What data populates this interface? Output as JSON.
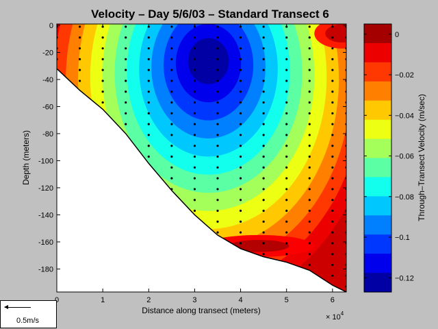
{
  "chart_data": {
    "type": "contour",
    "title": "Velocity – Day 5/6/03 – Standard Transect 6",
    "xlabel": "Distance along transect (meters)",
    "ylabel": "Depth (meters)",
    "x_multiplier": "× 10",
    "x_multiplier_exp": "4",
    "xlim": [
      0,
      63000
    ],
    "ylim": [
      -197,
      1
    ],
    "x_ticks": [
      0,
      10000,
      20000,
      30000,
      40000,
      50000,
      60000
    ],
    "x_tick_labels": [
      "0",
      "1",
      "2",
      "3",
      "4",
      "5",
      "6"
    ],
    "y_ticks": [
      0,
      -20,
      -40,
      -60,
      -80,
      -100,
      -120,
      -140,
      -160,
      -180
    ],
    "colorbar": {
      "label": "Through–Transect Velocity (m/sec)",
      "range": [
        -0.127,
        0.005
      ],
      "ticks": [
        0,
        -0.02,
        -0.04,
        -0.06,
        -0.08,
        -0.1,
        -0.12
      ],
      "tick_labels": [
        "0",
        "−0.02",
        "−0.04",
        "−0.06",
        "−0.08",
        "−0.1",
        "−0.12"
      ]
    },
    "bottom_profile": [
      [
        0,
        -32
      ],
      [
        5000,
        -48
      ],
      [
        10000,
        -62
      ],
      [
        15000,
        -80
      ],
      [
        20000,
        -102
      ],
      [
        25000,
        -122
      ],
      [
        30000,
        -140
      ],
      [
        35000,
        -155
      ],
      [
        40000,
        -165
      ],
      [
        45000,
        -171
      ],
      [
        50000,
        -175
      ],
      [
        55000,
        -181
      ],
      [
        60000,
        -192
      ],
      [
        63000,
        -197
      ]
    ],
    "velocity_core": {
      "x": 33000,
      "depth": -25,
      "value": -0.127
    },
    "station_x": [
      0,
      5000,
      10000,
      15000,
      20000,
      25000,
      30000,
      35000,
      40000,
      45000,
      50000,
      55000,
      60000,
      63000
    ],
    "vector_key": {
      "label": "0.5m/s"
    }
  }
}
